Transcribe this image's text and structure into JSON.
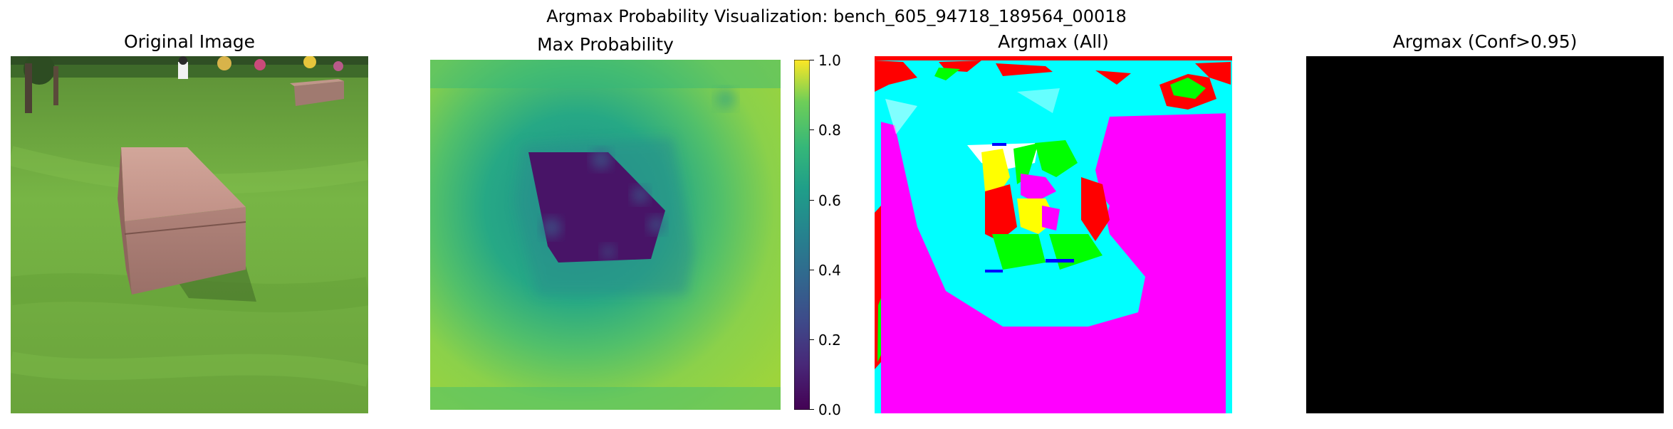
{
  "figure": {
    "suptitle": "Argmax Probability Visualization: bench_605_94718_189564_00018"
  },
  "panels": {
    "original": {
      "title": "Original Image"
    },
    "max_prob": {
      "title": "Max Probability"
    },
    "argmax_all": {
      "title": "Argmax (All)"
    },
    "argmax_conf": {
      "title": "Argmax (Conf>0.95)"
    }
  },
  "colorbar": {
    "colormap": "viridis",
    "range": [
      0.0,
      1.0
    ],
    "ticks": [
      "0.0",
      "0.2",
      "0.4",
      "0.6",
      "0.8",
      "1.0"
    ]
  },
  "chart_data": {
    "type": "heatmap",
    "title": "Max Probability",
    "colorbar_range": [
      0.0,
      1.0
    ],
    "colorbar_ticks": [
      0.0,
      0.2,
      0.4,
      0.6,
      0.8,
      1.0
    ],
    "colormap": "viridis"
  },
  "colors": {
    "grass": "#6aa83b",
    "bench": "#b98a7e",
    "viridis_low": "#440154",
    "viridis_mid": "#5fbe73",
    "viridis_high": "#fde725",
    "class_magenta": "#ff00ff",
    "class_cyan": "#00ffff",
    "class_red": "#ff0000",
    "class_green": "#00ff00",
    "class_yellow": "#ffff00",
    "class_blue": "#0000ff",
    "masked": "#000000"
  }
}
